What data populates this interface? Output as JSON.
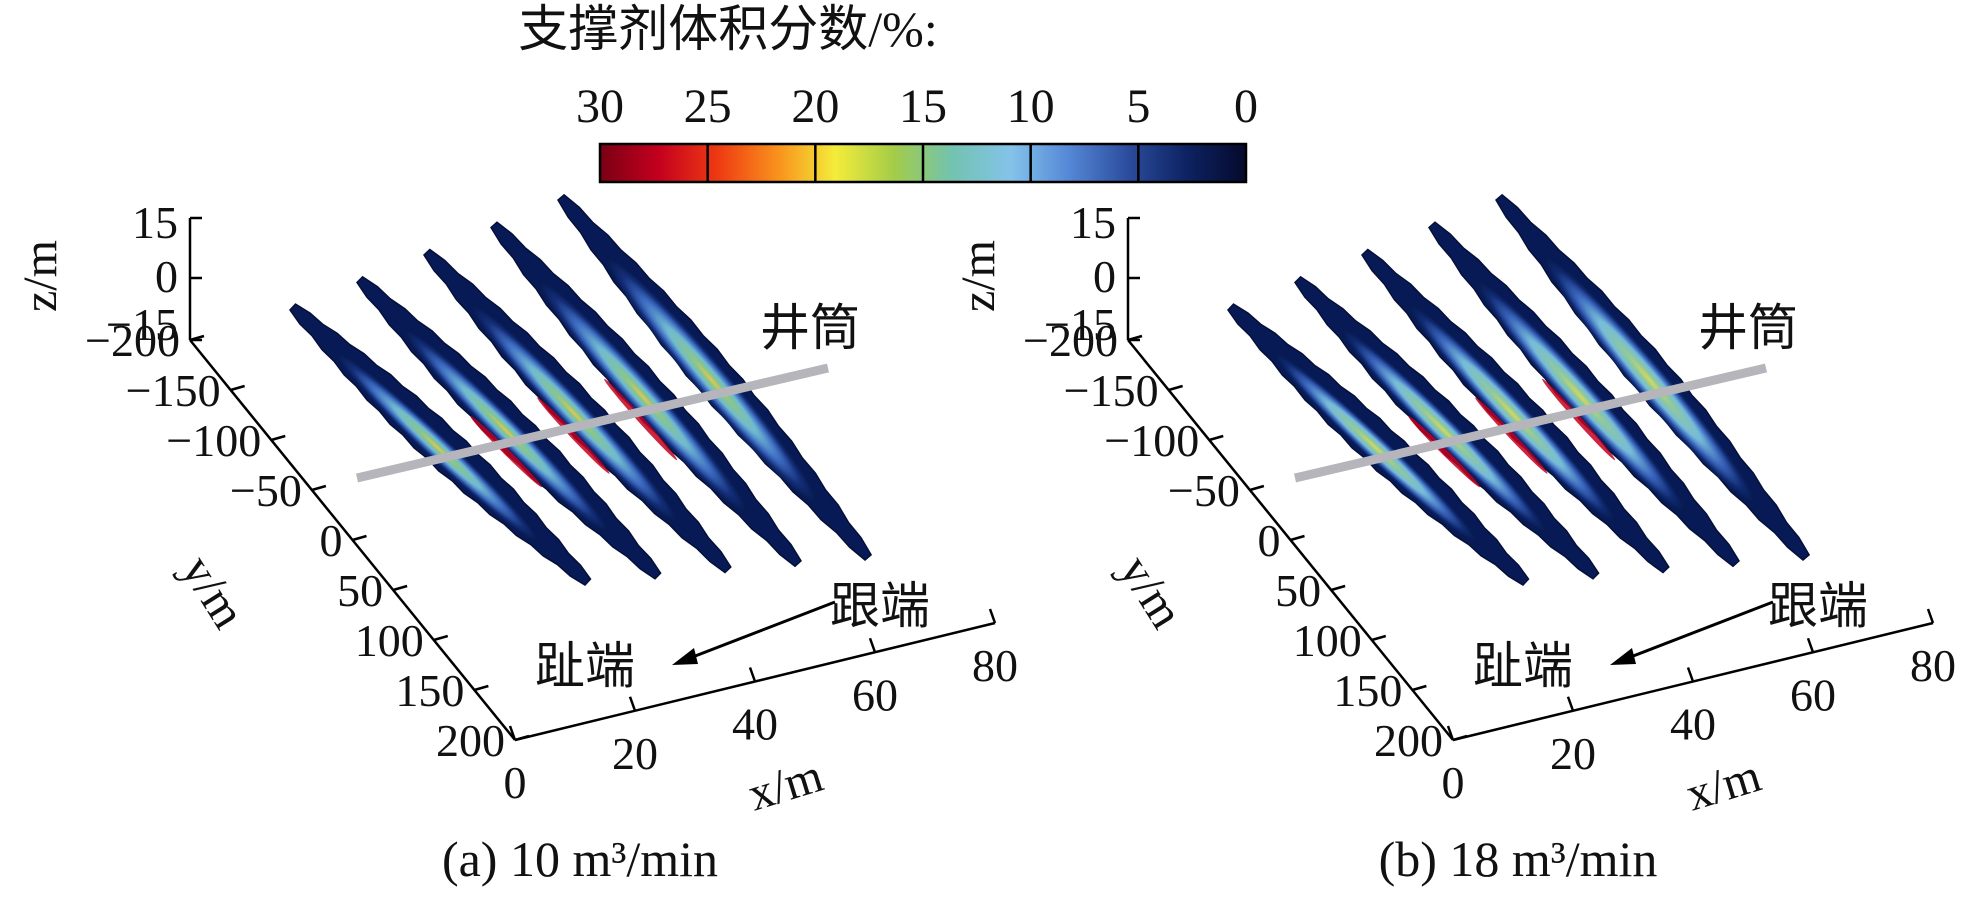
{
  "colorbar": {
    "title": "支撑剂体积分数/%:",
    "ticks": [
      "30",
      "25",
      "20",
      "15",
      "10",
      "5",
      "0"
    ],
    "colors": [
      "#7a0014",
      "#c4001e",
      "#ee3a12",
      "#f98f1c",
      "#f4ec3a",
      "#a4cc48",
      "#72c3b0",
      "#84c3ea",
      "#5487d6",
      "#2b4c9c",
      "#0d2262",
      "#050a2c"
    ]
  },
  "panels": [
    {
      "caption": "(a) 10 m³/min",
      "z_label": "z/m",
      "z_ticks": [
        "15",
        "0",
        "−15"
      ],
      "y_label": "y/m",
      "y_ticks": [
        "−200",
        "−150",
        "−100",
        "−50",
        "0",
        "50",
        "100",
        "150",
        "200"
      ],
      "x_label": "x/m",
      "x_ticks": [
        "0",
        "20",
        "40",
        "60",
        "80"
      ],
      "wellbore_label": "井筒",
      "heel_label": "跟端",
      "toe_label": "趾端"
    },
    {
      "caption": "(b) 18 m³/min",
      "z_label": "z/m",
      "z_ticks": [
        "15",
        "0",
        "−15"
      ],
      "y_label": "y/m",
      "y_ticks": [
        "−200",
        "−150",
        "−100",
        "−50",
        "0",
        "50",
        "100",
        "150",
        "200"
      ],
      "x_label": "x/m",
      "x_ticks": [
        "0",
        "20",
        "40",
        "60",
        "80"
      ],
      "wellbore_label": "井筒",
      "heel_label": "跟端",
      "toe_label": "趾端"
    }
  ]
}
